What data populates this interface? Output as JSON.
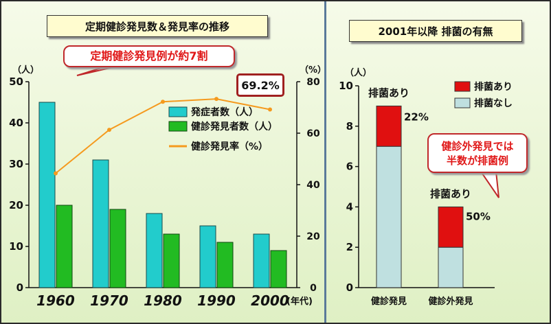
{
  "left_title": "定期健診発見数＆発見率の推移",
  "right_title": "2001年以降 排菌の有無",
  "callout_left": "定期健診発見例が約7割",
  "callout_right": [
    "健診外発見では",
    "半数が排菌例"
  ],
  "highlight_value": "69.2%",
  "colors": {
    "onset": "#22cccc",
    "detected": "#22bb22",
    "rate": "#f59a1e",
    "positive": "#e01010",
    "negative": "#bfe0e0",
    "callout_text": "#e01818"
  },
  "chart_data": [
    {
      "type": "bar",
      "title": "定期健診発見数＆発見率の推移",
      "categories": [
        "1960",
        "1970",
        "1980",
        "1990",
        "2000"
      ],
      "x_suffix": "(年代)",
      "y_unit": "（人）",
      "y2_unit": "（%）",
      "ylim": [
        0,
        50
      ],
      "y_ticks": [
        0,
        10,
        20,
        30,
        40,
        50
      ],
      "y2lim": [
        0,
        80
      ],
      "y2_ticks": [
        0,
        20,
        40,
        60,
        80
      ],
      "series": [
        {
          "name": "発症者数（人）",
          "type": "bar",
          "values": [
            45,
            31,
            18,
            15,
            13
          ]
        },
        {
          "name": "健診発見者数（人）",
          "type": "bar",
          "values": [
            20,
            19,
            13,
            11,
            9
          ]
        },
        {
          "name": "健診発見率（%）",
          "type": "line",
          "axis": "right",
          "values": [
            44.4,
            61.3,
            72.2,
            73.3,
            69.2
          ]
        }
      ],
      "legend_position": "top-right"
    },
    {
      "type": "bar",
      "stacked": true,
      "title": "2001年以降 排菌の有無",
      "categories": [
        "健診発見",
        "健診外発見"
      ],
      "y_unit": "（人）",
      "ylim": [
        0,
        10
      ],
      "y_ticks": [
        0,
        2,
        4,
        6,
        8,
        10
      ],
      "series": [
        {
          "name": "排菌なし",
          "values": [
            7,
            2
          ]
        },
        {
          "name": "排菌あり",
          "values": [
            2,
            2
          ]
        }
      ],
      "top_labels": [
        "排菌あり",
        "排菌あり"
      ],
      "percent_labels": [
        "22%",
        "50%"
      ],
      "legend_position": "top-right"
    }
  ]
}
